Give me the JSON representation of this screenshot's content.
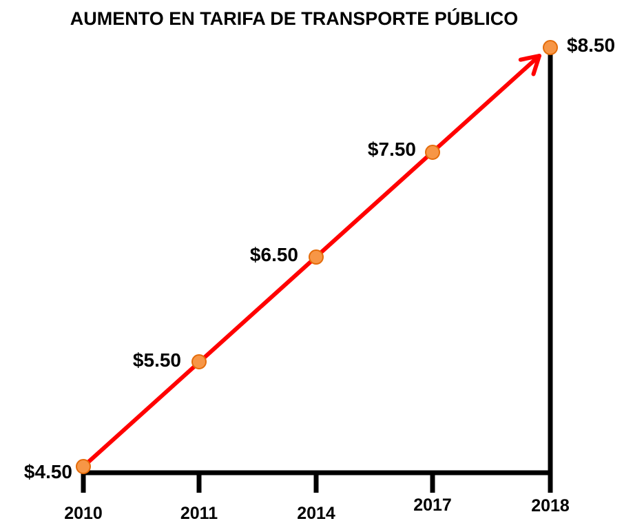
{
  "chart_data": {
    "type": "line",
    "title": "AUMENTO EN TARIFA DE TRANSPORTE PÚBLICO",
    "xlabel": "",
    "ylabel": "",
    "categories": [
      "2010",
      "2011",
      "2014",
      "2017",
      "2018"
    ],
    "values": [
      4.5,
      5.5,
      6.5,
      7.5,
      8.5
    ],
    "data_labels": [
      "$4.50",
      "$5.50",
      "$6.50",
      "$7.50",
      "$8.50"
    ],
    "ylim": [
      4.5,
      8.5
    ],
    "grid": false,
    "legend": "none",
    "line_color": "#ff0000",
    "marker_color": "#f79646",
    "marker_edge_color": "#e46c0a",
    "axis_color": "#000000"
  }
}
